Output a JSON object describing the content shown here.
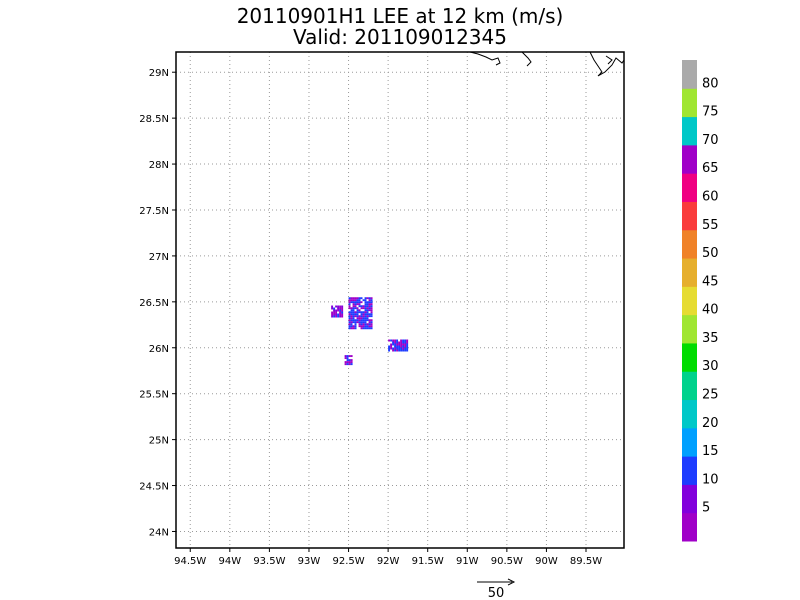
{
  "title": "20110901H1 LEE at 12 km (m/s)",
  "subtitle": "Valid: 201109012345",
  "chart_data": {
    "type": "heatmap",
    "x_ticks": [
      {
        "value": -94.5,
        "label": "94.5W"
      },
      {
        "value": -94,
        "label": "94W"
      },
      {
        "value": -93.5,
        "label": "93.5W"
      },
      {
        "value": -93,
        "label": "93W"
      },
      {
        "value": -92.5,
        "label": "92.5W"
      },
      {
        "value": -92,
        "label": "92W"
      },
      {
        "value": -91.5,
        "label": "91.5W"
      },
      {
        "value": -91,
        "label": "91W"
      },
      {
        "value": -90.5,
        "label": "90.5W"
      },
      {
        "value": -90,
        "label": "90W"
      },
      {
        "value": -89.5,
        "label": "89.5W"
      }
    ],
    "y_ticks": [
      {
        "value": 24,
        "label": "24N"
      },
      {
        "value": 24.5,
        "label": "24.5N"
      },
      {
        "value": 25,
        "label": "25N"
      },
      {
        "value": 25.5,
        "label": "25.5N"
      },
      {
        "value": 26,
        "label": "26N"
      },
      {
        "value": 26.5,
        "label": "26.5N"
      },
      {
        "value": 27,
        "label": "27N"
      },
      {
        "value": 27.5,
        "label": "27.5N"
      },
      {
        "value": 28,
        "label": "28N"
      },
      {
        "value": 28.5,
        "label": "28.5N"
      },
      {
        "value": 29,
        "label": "29N"
      }
    ],
    "xlim": [
      -94.68,
      -89.02
    ],
    "ylim": [
      23.82,
      29.22
    ],
    "grid": true,
    "colorbar": {
      "levels": [
        {
          "label": "",
          "color": "#a000c8"
        },
        {
          "label": "5",
          "color": "#8200dc"
        },
        {
          "label": "10",
          "color": "#1e3cff"
        },
        {
          "label": "15",
          "color": "#00a0ff"
        },
        {
          "label": "20",
          "color": "#00c8c8"
        },
        {
          "label": "25",
          "color": "#00d28c"
        },
        {
          "label": "30",
          "color": "#00dc00"
        },
        {
          "label": "35",
          "color": "#a0e632"
        },
        {
          "label": "40",
          "color": "#e6dc32"
        },
        {
          "label": "45",
          "color": "#e6af2d"
        },
        {
          "label": "50",
          "color": "#f08228"
        },
        {
          "label": "55",
          "color": "#fa3c3c"
        },
        {
          "label": "60",
          "color": "#f00082"
        },
        {
          "label": "65",
          "color": "#a000c8"
        },
        {
          "label": "70",
          "color": "#00c8c8"
        },
        {
          "label": "75",
          "color": "#a0e632"
        },
        {
          "label": "80",
          "color": "#aaaaaa"
        }
      ]
    },
    "echo_clusters": [
      {
        "lon_min": -92.72,
        "lon_max": -92.57,
        "lat_min": 26.35,
        "lat_max": 26.46,
        "dominant_level": "5"
      },
      {
        "lon_min": -92.5,
        "lon_max": -92.2,
        "lat_min": 26.22,
        "lat_max": 26.55,
        "dominant_level": "10"
      },
      {
        "lon_min": -92.0,
        "lon_max": -91.75,
        "lat_min": 25.98,
        "lat_max": 26.09,
        "dominant_level": "10"
      },
      {
        "lon_min": -92.55,
        "lon_max": -92.45,
        "lat_min": 25.83,
        "lat_max": 25.92,
        "dominant_level": "5"
      }
    ],
    "reference_vector": {
      "label": "50"
    }
  }
}
